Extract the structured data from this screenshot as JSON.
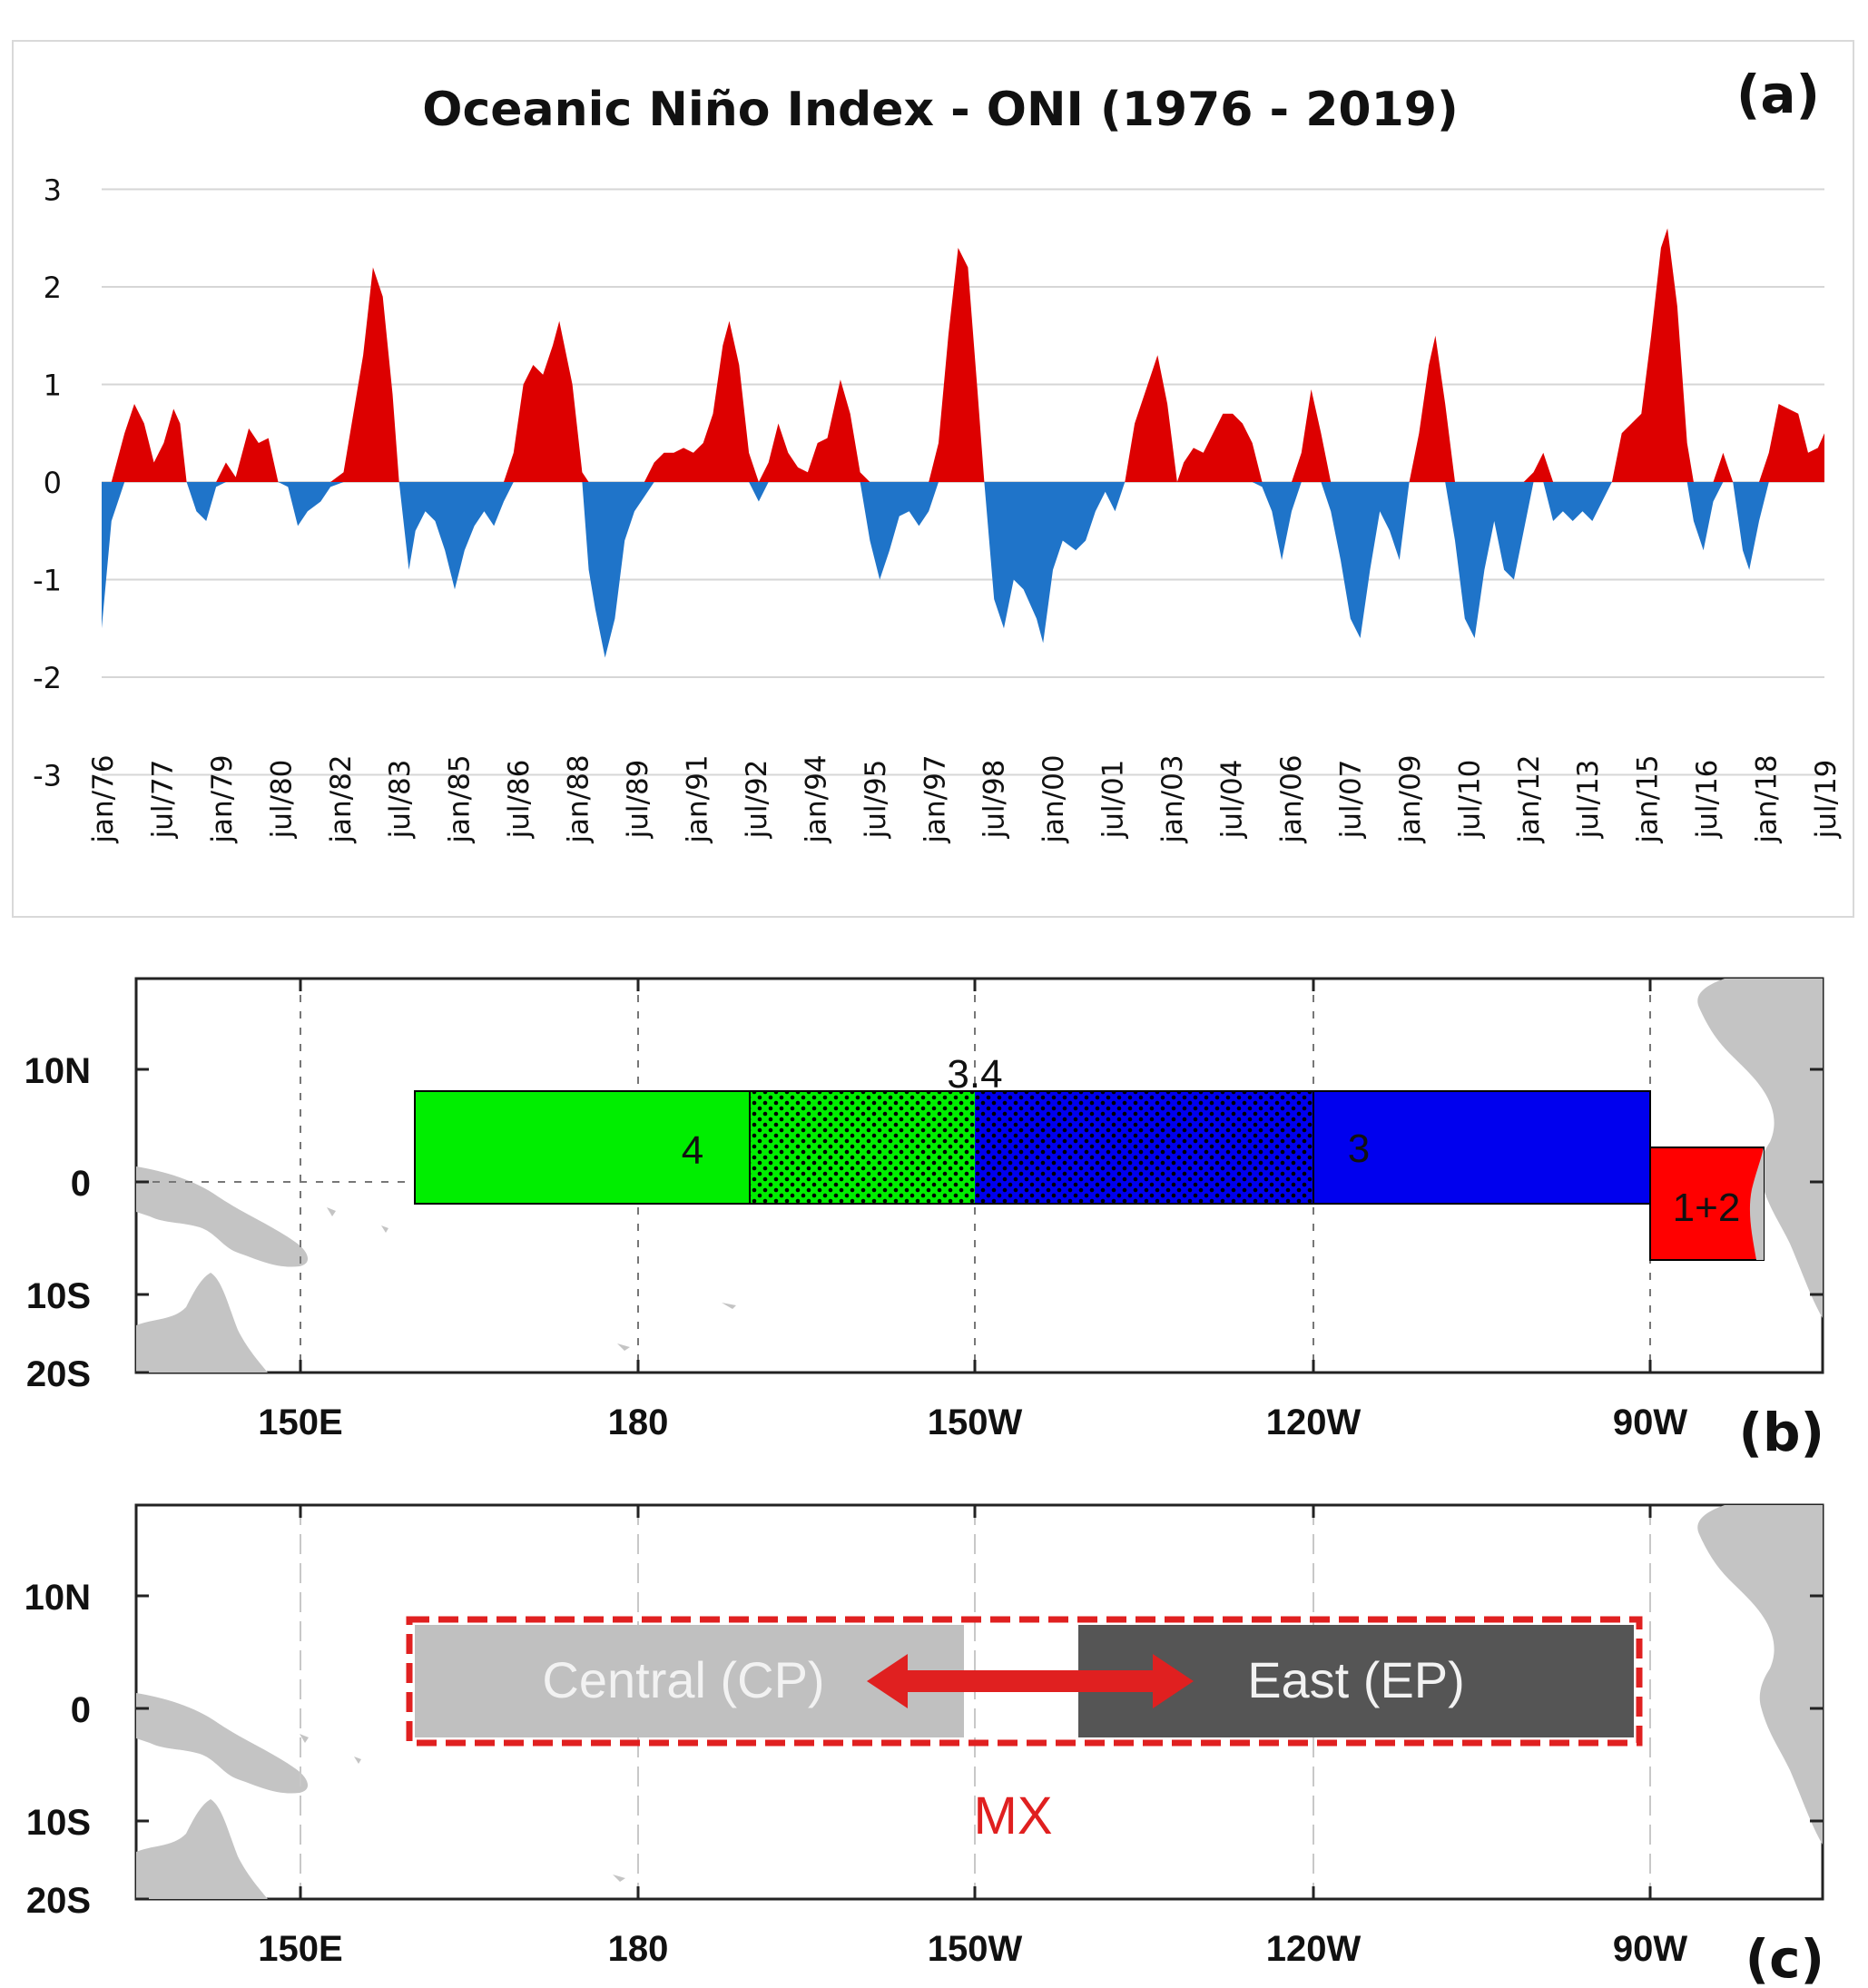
{
  "panel_labels": {
    "a": "(a)",
    "b": "(b)",
    "c": "(c)"
  },
  "chart_data": [
    {
      "type": "area",
      "title": "Oceanic Niño Index - ONI (1976 - 2019)",
      "ylim": [
        -3,
        3
      ],
      "y_ticks": [
        3,
        2,
        1,
        0,
        -1,
        -2,
        -3
      ],
      "x_tick_labels": [
        "jan/76",
        "jul/77",
        "jan/79",
        "jul/80",
        "jan/82",
        "jul/83",
        "jan/85",
        "jul/86",
        "jan/88",
        "jul/89",
        "jan/91",
        "jul/92",
        "jan/94",
        "jul/95",
        "jan/97",
        "jul/98",
        "jan/00",
        "jul/01",
        "jan/03",
        "jul/04",
        "jan/06",
        "jul/07",
        "jan/09",
        "jul/10",
        "jan/12",
        "jul/13",
        "jan/15",
        "jul/16",
        "jan/18",
        "jul/19"
      ],
      "x_start": "jan/76",
      "x_end": "dec/19",
      "grid": true,
      "colors": {
        "positive": "#dd0000",
        "negative": "#1f74c9"
      },
      "series": [
        {
          "points": [
            [
              "1976-01",
              -1.5
            ],
            [
              "1976-04",
              -0.4
            ],
            [
              "1976-08",
              0.5
            ],
            [
              "1976-11",
              0.8
            ],
            [
              "1977-02",
              0.6
            ],
            [
              "1977-05",
              0.2
            ],
            [
              "1977-08",
              0.4
            ],
            [
              "1977-11",
              0.75
            ],
            [
              "1978-01",
              0.6
            ],
            [
              "1978-03",
              0.0
            ],
            [
              "1978-06",
              -0.3
            ],
            [
              "1978-09",
              -0.4
            ],
            [
              "1978-12",
              -0.05
            ],
            [
              "1979-03",
              0.2
            ],
            [
              "1979-06",
              0.05
            ],
            [
              "1979-10",
              0.55
            ],
            [
              "1980-01",
              0.4
            ],
            [
              "1980-04",
              0.45
            ],
            [
              "1980-07",
              0.0
            ],
            [
              "1980-10",
              -0.05
            ],
            [
              "1981-01",
              -0.45
            ],
            [
              "1981-04",
              -0.3
            ],
            [
              "1981-08",
              -0.2
            ],
            [
              "1981-11",
              -0.05
            ],
            [
              "1982-03",
              0.1
            ],
            [
              "1982-06",
              0.7
            ],
            [
              "1982-09",
              1.3
            ],
            [
              "1982-12",
              2.2
            ],
            [
              "1983-03",
              1.9
            ],
            [
              "1983-06",
              0.9
            ],
            [
              "1983-08",
              0.0
            ],
            [
              "1983-11",
              -0.9
            ],
            [
              "1984-01",
              -0.5
            ],
            [
              "1984-04",
              -0.3
            ],
            [
              "1984-07",
              -0.4
            ],
            [
              "1984-10",
              -0.7
            ],
            [
              "1985-01",
              -1.1
            ],
            [
              "1985-04",
              -0.7
            ],
            [
              "1985-07",
              -0.45
            ],
            [
              "1985-10",
              -0.3
            ],
            [
              "1986-01",
              -0.45
            ],
            [
              "1986-04",
              -0.2
            ],
            [
              "1986-07",
              0.3
            ],
            [
              "1986-10",
              1.0
            ],
            [
              "1987-01",
              1.2
            ],
            [
              "1987-04",
              1.1
            ],
            [
              "1987-07",
              1.4
            ],
            [
              "1987-09",
              1.65
            ],
            [
              "1988-01",
              1.0
            ],
            [
              "1988-04",
              0.1
            ],
            [
              "1988-06",
              -0.9
            ],
            [
              "1988-08",
              -1.3
            ],
            [
              "1988-11",
              -1.8
            ],
            [
              "1989-02",
              -1.4
            ],
            [
              "1989-05",
              -0.6
            ],
            [
              "1989-08",
              -0.3
            ],
            [
              "1989-11",
              -0.15
            ],
            [
              "1990-02",
              0.2
            ],
            [
              "1990-05",
              0.3
            ],
            [
              "1990-08",
              0.3
            ],
            [
              "1990-11",
              0.35
            ],
            [
              "1991-02",
              0.3
            ],
            [
              "1991-05",
              0.4
            ],
            [
              "1991-08",
              0.7
            ],
            [
              "1991-11",
              1.4
            ],
            [
              "1992-01",
              1.65
            ],
            [
              "1992-04",
              1.2
            ],
            [
              "1992-07",
              0.3
            ],
            [
              "1992-10",
              -0.2
            ],
            [
              "1993-01",
              0.2
            ],
            [
              "1993-04",
              0.6
            ],
            [
              "1993-07",
              0.3
            ],
            [
              "1993-10",
              0.15
            ],
            [
              "1994-01",
              0.1
            ],
            [
              "1994-04",
              0.4
            ],
            [
              "1994-07",
              0.45
            ],
            [
              "1994-11",
              1.05
            ],
            [
              "1995-02",
              0.7
            ],
            [
              "1995-05",
              0.1
            ],
            [
              "1995-08",
              -0.6
            ],
            [
              "1995-11",
              -1.0
            ],
            [
              "1996-02",
              -0.7
            ],
            [
              "1996-05",
              -0.35
            ],
            [
              "1996-08",
              -0.3
            ],
            [
              "1996-11",
              -0.45
            ],
            [
              "1997-02",
              -0.3
            ],
            [
              "1997-05",
              0.4
            ],
            [
              "1997-08",
              1.5
            ],
            [
              "1997-11",
              2.4
            ],
            [
              "1998-02",
              2.2
            ],
            [
              "1998-05",
              0.9
            ],
            [
              "1998-07",
              0.0
            ],
            [
              "1998-10",
              -1.2
            ],
            [
              "1999-01",
              -1.5
            ],
            [
              "1999-04",
              -1.0
            ],
            [
              "1999-07",
              -1.1
            ],
            [
              "1999-11",
              -1.4
            ],
            [
              "2000-01",
              -1.65
            ],
            [
              "2000-04",
              -0.9
            ],
            [
              "2000-07",
              -0.6
            ],
            [
              "2000-11",
              -0.7
            ],
            [
              "2001-02",
              -0.6
            ],
            [
              "2001-05",
              -0.3
            ],
            [
              "2001-08",
              -0.1
            ],
            [
              "2001-11",
              -0.3
            ],
            [
              "2002-02",
              0.0
            ],
            [
              "2002-05",
              0.6
            ],
            [
              "2002-09",
              1.0
            ],
            [
              "2002-12",
              1.3
            ],
            [
              "2003-03",
              0.8
            ],
            [
              "2003-06",
              0.0
            ],
            [
              "2003-08",
              0.2
            ],
            [
              "2003-11",
              0.35
            ],
            [
              "2004-02",
              0.3
            ],
            [
              "2004-05",
              0.5
            ],
            [
              "2004-08",
              0.7
            ],
            [
              "2004-11",
              0.7
            ],
            [
              "2005-02",
              0.6
            ],
            [
              "2005-05",
              0.4
            ],
            [
              "2005-08",
              -0.05
            ],
            [
              "2005-11",
              -0.3
            ],
            [
              "2006-02",
              -0.8
            ],
            [
              "2006-05",
              -0.3
            ],
            [
              "2006-08",
              0.3
            ],
            [
              "2006-11",
              0.95
            ],
            [
              "2007-02",
              0.5
            ],
            [
              "2007-05",
              -0.3
            ],
            [
              "2007-08",
              -0.8
            ],
            [
              "2007-11",
              -1.4
            ],
            [
              "2008-02",
              -1.6
            ],
            [
              "2008-05",
              -0.9
            ],
            [
              "2008-08",
              -0.3
            ],
            [
              "2008-11",
              -0.5
            ],
            [
              "2009-02",
              -0.8
            ],
            [
              "2009-05",
              0.0
            ],
            [
              "2009-08",
              0.5
            ],
            [
              "2009-11",
              1.2
            ],
            [
              "2010-01",
              1.5
            ],
            [
              "2010-04",
              0.8
            ],
            [
              "2010-07",
              -0.6
            ],
            [
              "2010-10",
              -1.4
            ],
            [
              "2011-01",
              -1.6
            ],
            [
              "2011-04",
              -0.9
            ],
            [
              "2011-07",
              -0.4
            ],
            [
              "2011-10",
              -0.9
            ],
            [
              "2012-01",
              -1.0
            ],
            [
              "2012-04",
              -0.5
            ],
            [
              "2012-07",
              0.1
            ],
            [
              "2012-10",
              0.3
            ],
            [
              "2013-01",
              -0.4
            ],
            [
              "2013-04",
              -0.3
            ],
            [
              "2013-07",
              -0.4
            ],
            [
              "2013-10",
              -0.3
            ],
            [
              "2014-01",
              -0.4
            ],
            [
              "2014-04",
              -0.2
            ],
            [
              "2014-07",
              0.0
            ],
            [
              "2014-10",
              0.5
            ],
            [
              "2015-01",
              0.6
            ],
            [
              "2015-04",
              0.7
            ],
            [
              "2015-07",
              1.5
            ],
            [
              "2015-10",
              2.4
            ],
            [
              "2015-12",
              2.6
            ],
            [
              "2016-03",
              1.8
            ],
            [
              "2016-06",
              0.4
            ],
            [
              "2016-08",
              -0.4
            ],
            [
              "2016-11",
              -0.7
            ],
            [
              "2017-02",
              -0.2
            ],
            [
              "2017-05",
              0.3
            ],
            [
              "2017-08",
              0.0
            ],
            [
              "2017-11",
              -0.7
            ],
            [
              "2018-01",
              -0.9
            ],
            [
              "2018-04",
              -0.4
            ],
            [
              "2018-07",
              0.3
            ],
            [
              "2018-10",
              0.8
            ],
            [
              "2019-01",
              0.75
            ],
            [
              "2019-04",
              0.7
            ],
            [
              "2019-07",
              0.3
            ],
            [
              "2019-10",
              0.35
            ],
            [
              "2019-12",
              0.5
            ]
          ]
        }
      ]
    },
    {
      "type": "map",
      "lat_ticks": [
        "10N",
        "0",
        "10S",
        "20S"
      ],
      "lon_ticks": [
        "150E",
        "180",
        "150W",
        "120W",
        "90W"
      ],
      "regions": [
        {
          "label": "4",
          "lon": [
            160,
            210
          ],
          "lat": [
            -5,
            5
          ],
          "color": "#00ee00"
        },
        {
          "label": "3.4",
          "lon": [
            190,
            240
          ],
          "lat": [
            -5,
            5
          ],
          "pattern": "dotted"
        },
        {
          "label": "3",
          "lon": [
            210,
            270
          ],
          "lat": [
            -5,
            5
          ],
          "color": "#0000ee"
        },
        {
          "label": "1+2",
          "lon": [
            270,
            280
          ],
          "lat": [
            -10,
            0
          ],
          "color": "#ff0000"
        }
      ]
    },
    {
      "type": "map",
      "lat_ticks": [
        "10N",
        "0",
        "10S",
        "20S"
      ],
      "lon_ticks": [
        "150E",
        "180",
        "150W",
        "120W",
        "90W"
      ],
      "regions": [
        {
          "label": "Central (CP)",
          "color": "#c0c0c0"
        },
        {
          "label": "East (EP)",
          "color": "#555555"
        },
        {
          "label": "MX",
          "color": "#e02020"
        }
      ]
    }
  ]
}
